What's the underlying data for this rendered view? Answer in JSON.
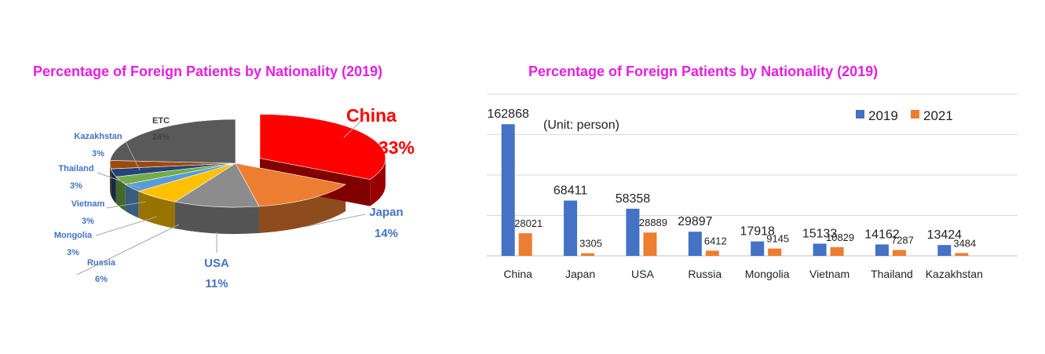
{
  "colors": {
    "title": "#E51FE1",
    "label_blue": "#4472C4",
    "label_red": "#FF0000",
    "series_2019": "#4472C4",
    "series_2021": "#ED7D31"
  },
  "chart_data": [
    {
      "type": "pie",
      "title": "Percentage of Foreign Patients by Nationality (2019)",
      "style": "3d-exploded",
      "slices": [
        {
          "label": "China",
          "value": 33,
          "display": "33%",
          "color": "#FF0000"
        },
        {
          "label": "Japan",
          "value": 14,
          "display": "14%",
          "color": "#ED7D31"
        },
        {
          "label": "USA",
          "value": 11,
          "display": "11%",
          "color": "#8C8C8C"
        },
        {
          "label": "Russia",
          "value": 6,
          "display": "6%",
          "color": "#FFC000"
        },
        {
          "label": "Mongolia",
          "value": 3,
          "display": "3%",
          "color": "#5B9BD5"
        },
        {
          "label": "Vietnam",
          "value": 3,
          "display": "3%",
          "color": "#70AD47"
        },
        {
          "label": "Thailand",
          "value": 3,
          "display": "3%",
          "color": "#264478"
        },
        {
          "label": "Kazakhstan",
          "value": 3,
          "display": "3%",
          "color": "#9E480E"
        },
        {
          "label": "ETC",
          "value": 24,
          "display": "24%",
          "color": "#595959"
        }
      ]
    },
    {
      "type": "bar",
      "title": "Percentage of Foreign Patients by Nationality (2019)",
      "annotation": "(Unit: person)",
      "categories": [
        "China",
        "Japan",
        "USA",
        "Russia",
        "Mongolia",
        "Vietnam",
        "Thailand",
        "Kazakhstan"
      ],
      "series": [
        {
          "name": "2019",
          "values": [
            162868,
            68411,
            58358,
            29897,
            17918,
            15133,
            14162,
            13424
          ],
          "color": "#4472C4"
        },
        {
          "name": "2021",
          "values": [
            28021,
            3305,
            28889,
            6412,
            9145,
            10829,
            7287,
            3484
          ],
          "color": "#ED7D31"
        }
      ],
      "ylim": [
        0,
        200000
      ],
      "grid": true,
      "legend": "top-right"
    }
  ]
}
